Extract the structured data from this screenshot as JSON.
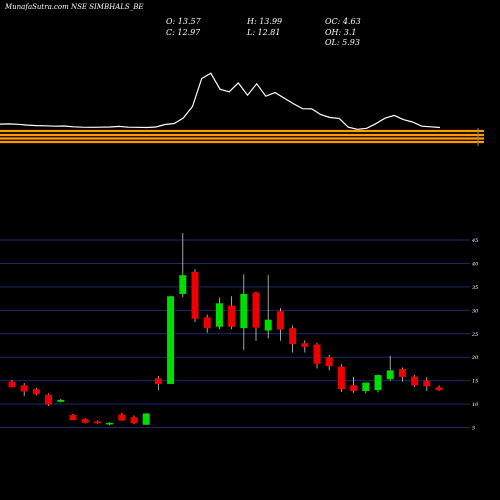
{
  "header": {
    "title": "MunafaSutra.com NSE SIMBHALS_BE"
  },
  "ohlc": {
    "open": "O: 13.57",
    "high": "H: 13.99",
    "oc": "OC: 4.63",
    "close": "C: 12.97",
    "low": "L: 12.81",
    "oh": "OH: 3.1",
    "ol": "OL: 5.93"
  },
  "colors": {
    "up": "#00dd00",
    "down": "#ee0000",
    "wick": "#cccccc",
    "volume_line": "#ffffff",
    "band": "#ff9900",
    "grid": "#1c2a6a"
  },
  "chart_data": [
    {
      "type": "line",
      "panel": "volume",
      "values": [
        0.52,
        0.53,
        0.51,
        0.47,
        0.44,
        0.43,
        0.41,
        0.42,
        0.38,
        0.36,
        0.35,
        0.36,
        0.37,
        0.4,
        0.36,
        0.35,
        0.34,
        0.37,
        0.5,
        0.55,
        0.84,
        1.45,
        2.92,
        3.2,
        2.36,
        2.22,
        2.69,
        2.04,
        2.64,
        1.99,
        2.18,
        1.89,
        1.6,
        1.33,
        1.32,
        1.02,
        0.87,
        0.82,
        0.36,
        0.25,
        0.3,
        0.54,
        0.83,
        0.98,
        0.76,
        0.63,
        0.41,
        0.38,
        0.34
      ],
      "xlabel": "",
      "ylabel": ""
    },
    {
      "type": "candlestick",
      "panel": "price",
      "ylim": [
        0,
        45
      ],
      "y_ticks": [
        "45",
        "40",
        "35",
        "30",
        "25",
        "20",
        "15",
        "10",
        "5"
      ],
      "candles": [
        {
          "open": 14.8,
          "high": 15.2,
          "low": 13.8,
          "close": 13.6
        },
        {
          "open": 14.0,
          "high": 14.5,
          "low": 11.7,
          "close": 12.7
        },
        {
          "open": 13.2,
          "high": 13.5,
          "low": 11.9,
          "close": 12.1
        },
        {
          "open": 12.0,
          "high": 12.3,
          "low": 9.6,
          "close": 9.9
        },
        {
          "open": 10.5,
          "high": 11.1,
          "low": 10.4,
          "close": 10.9
        },
        {
          "open": 7.7,
          "high": 7.9,
          "low": 6.6,
          "close": 6.6
        },
        {
          "open": 6.8,
          "high": 7.0,
          "low": 5.9,
          "close": 6.0
        },
        {
          "open": 6.3,
          "high": 6.5,
          "low": 5.8,
          "close": 5.9
        },
        {
          "open": 5.7,
          "high": 6.1,
          "low": 5.5,
          "close": 6.0
        },
        {
          "open": 7.8,
          "high": 8.1,
          "low": 6.4,
          "close": 6.5
        },
        {
          "open": 7.2,
          "high": 7.6,
          "low": 5.7,
          "close": 5.9
        },
        {
          "open": 5.6,
          "high": 8.1,
          "low": 5.6,
          "close": 8.0
        },
        {
          "open": 15.5,
          "high": 16.0,
          "low": 13.0,
          "close": 14.3
        },
        {
          "open": 14.3,
          "high": 33.0,
          "low": 14.3,
          "close": 33.0
        },
        {
          "open": 33.5,
          "high": 46.5,
          "low": 32.8,
          "close": 37.5
        },
        {
          "open": 38.2,
          "high": 38.8,
          "low": 27.5,
          "close": 28.2
        },
        {
          "open": 28.5,
          "high": 29.1,
          "low": 25.2,
          "close": 26.2
        },
        {
          "open": 26.5,
          "high": 32.7,
          "low": 26.0,
          "close": 31.5
        },
        {
          "open": 31.0,
          "high": 33.0,
          "low": 26.0,
          "close": 26.5
        },
        {
          "open": 26.2,
          "high": 37.7,
          "low": 21.5,
          "close": 33.5
        },
        {
          "open": 33.8,
          "high": 34.0,
          "low": 23.5,
          "close": 26.3
        },
        {
          "open": 25.7,
          "high": 37.5,
          "low": 24.0,
          "close": 28.0
        },
        {
          "open": 29.8,
          "high": 30.5,
          "low": 23.5,
          "close": 25.9
        },
        {
          "open": 26.2,
          "high": 26.8,
          "low": 21.0,
          "close": 22.8
        },
        {
          "open": 23.0,
          "high": 23.6,
          "low": 21.0,
          "close": 22.2
        },
        {
          "open": 22.7,
          "high": 23.1,
          "low": 17.6,
          "close": 18.6
        },
        {
          "open": 20.0,
          "high": 20.5,
          "low": 17.2,
          "close": 18.1
        },
        {
          "open": 18.0,
          "high": 18.5,
          "low": 12.6,
          "close": 13.2
        },
        {
          "open": 14.0,
          "high": 15.8,
          "low": 12.4,
          "close": 12.8
        },
        {
          "open": 12.8,
          "high": 14.3,
          "low": 12.3,
          "close": 14.6
        },
        {
          "open": 13.0,
          "high": 16.2,
          "low": 12.5,
          "close": 16.2
        },
        {
          "open": 15.3,
          "high": 20.3,
          "low": 15.0,
          "close": 17.2
        },
        {
          "open": 17.5,
          "high": 17.8,
          "low": 14.8,
          "close": 15.8
        },
        {
          "open": 15.9,
          "high": 16.2,
          "low": 13.7,
          "close": 14.0
        },
        {
          "open": 15.0,
          "high": 15.8,
          "low": 12.8,
          "close": 13.8
        },
        {
          "open": 13.57,
          "high": 13.99,
          "low": 12.81,
          "close": 12.97
        }
      ],
      "xlabel": "",
      "ylabel": ""
    }
  ]
}
